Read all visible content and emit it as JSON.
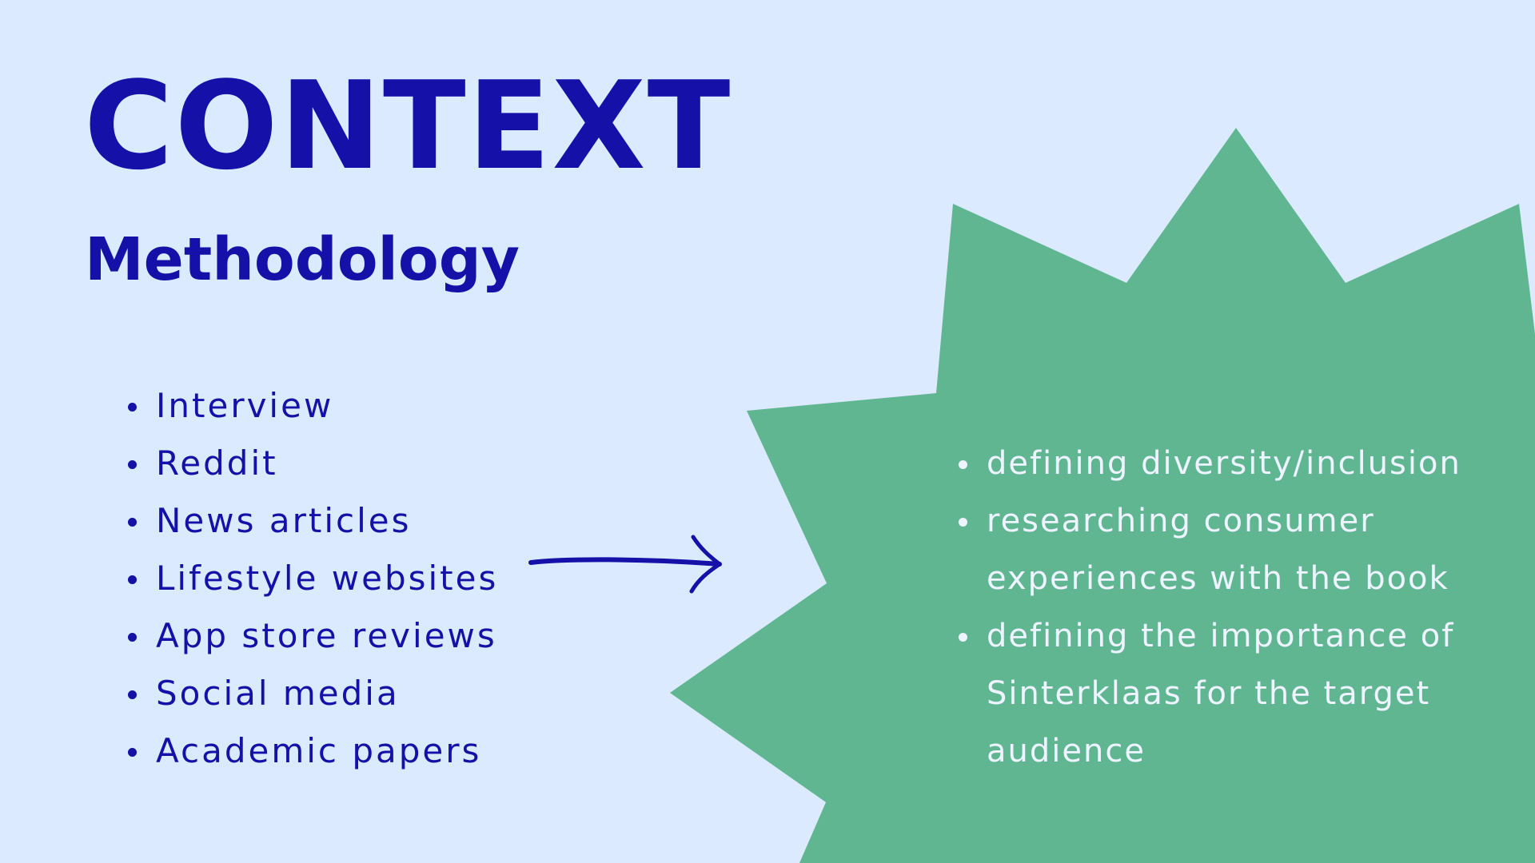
{
  "slide": {
    "title": "CONTEXT",
    "subtitle": "Methodology",
    "sources": [
      "Interview",
      "Reddit",
      "News articles",
      "Lifestyle websites",
      "App store reviews",
      "Social media",
      "Academic papers"
    ],
    "outcomes": [
      "defining diversity/inclusion",
      "researching consumer",
      "experiences with the book",
      "defining the importance of",
      "Sinterklaas for the target",
      "audience"
    ]
  },
  "icons": {
    "arrow": "arrow-right-icon",
    "burst": "starburst-shape"
  },
  "colors": {
    "background": "#dbeafe",
    "accent": "#1410a8",
    "burst": "#61b692",
    "burst_text": "#eef4ff"
  }
}
